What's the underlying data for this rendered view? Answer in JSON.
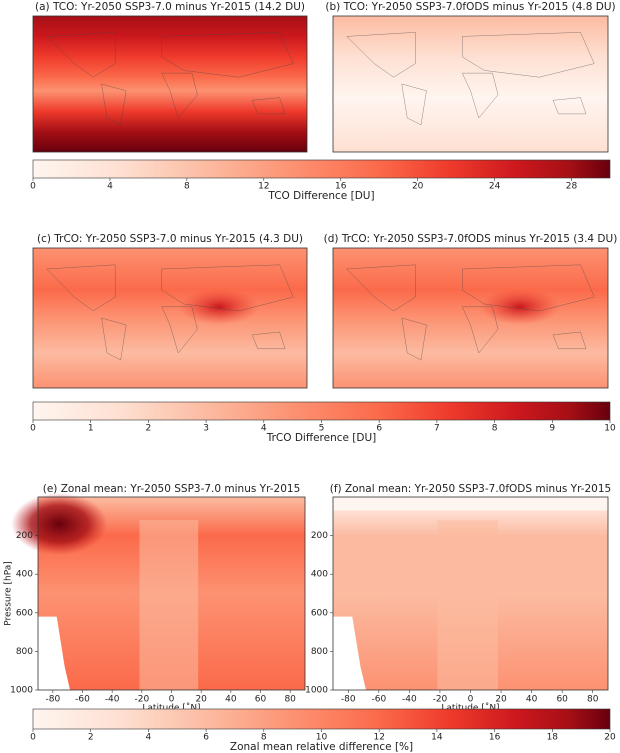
{
  "chart_data": [
    {
      "type": "map",
      "title": "(a) TCO: Yr-2050 SSP3-7.0 minus Yr-2015 (14.2 DU)"
    },
    {
      "type": "map",
      "title": "(b) TCO: Yr-2050 SSP3-7.0fODS minus Yr-2015 (4.8 DU)"
    },
    {
      "type": "colorbar",
      "xlabel": "TCO Difference [DU]",
      "xlim": [
        0,
        30
      ],
      "xticks": [
        0,
        4,
        8,
        12,
        16,
        20,
        24,
        28
      ]
    },
    {
      "type": "map",
      "title": "(c) TrCO: Yr-2050 SSP3-7.0 minus Yr-2015 (4.3 DU)"
    },
    {
      "type": "map",
      "title": "(d) TrCO: Yr-2050 SSP3-7.0fODS minus Yr-2015 (3.4 DU)"
    },
    {
      "type": "colorbar",
      "xlabel": "TrCO Difference [DU]",
      "xlim": [
        0,
        10
      ],
      "xticks": [
        0,
        1,
        2,
        3,
        4,
        5,
        6,
        7,
        8,
        9,
        10
      ]
    },
    {
      "type": "contour",
      "title": "(e) Zonal mean: Yr-2050 SSP3-7.0 minus Yr-2015",
      "xlabel": "Latitude [˚N]",
      "ylabel": "Pressure [hPa]",
      "xlim": [
        -90,
        90
      ],
      "xticks": [
        -80,
        -60,
        -40,
        -20,
        0,
        20,
        40,
        60,
        80
      ],
      "ylim": [
        1000,
        0
      ],
      "yticks": [
        200,
        400,
        600,
        800,
        1000
      ]
    },
    {
      "type": "contour",
      "title": "(f) Zonal mean: Yr-2050 SSP3-7.0fODS minus Yr-2015",
      "xlabel": "Latitude [˚N]",
      "xlim": [
        -90,
        90
      ],
      "xticks": [
        -80,
        -60,
        -40,
        -20,
        0,
        20,
        40,
        60,
        80
      ],
      "ylim": [
        1000,
        0
      ],
      "yticks": [
        200,
        400,
        600,
        800,
        1000
      ]
    },
    {
      "type": "colorbar",
      "xlabel": "Zonal mean relative difference [%]",
      "xlim": [
        0,
        20
      ],
      "xticks": [
        0,
        2,
        4,
        6,
        8,
        10,
        12,
        14,
        16,
        18,
        20
      ]
    }
  ]
}
